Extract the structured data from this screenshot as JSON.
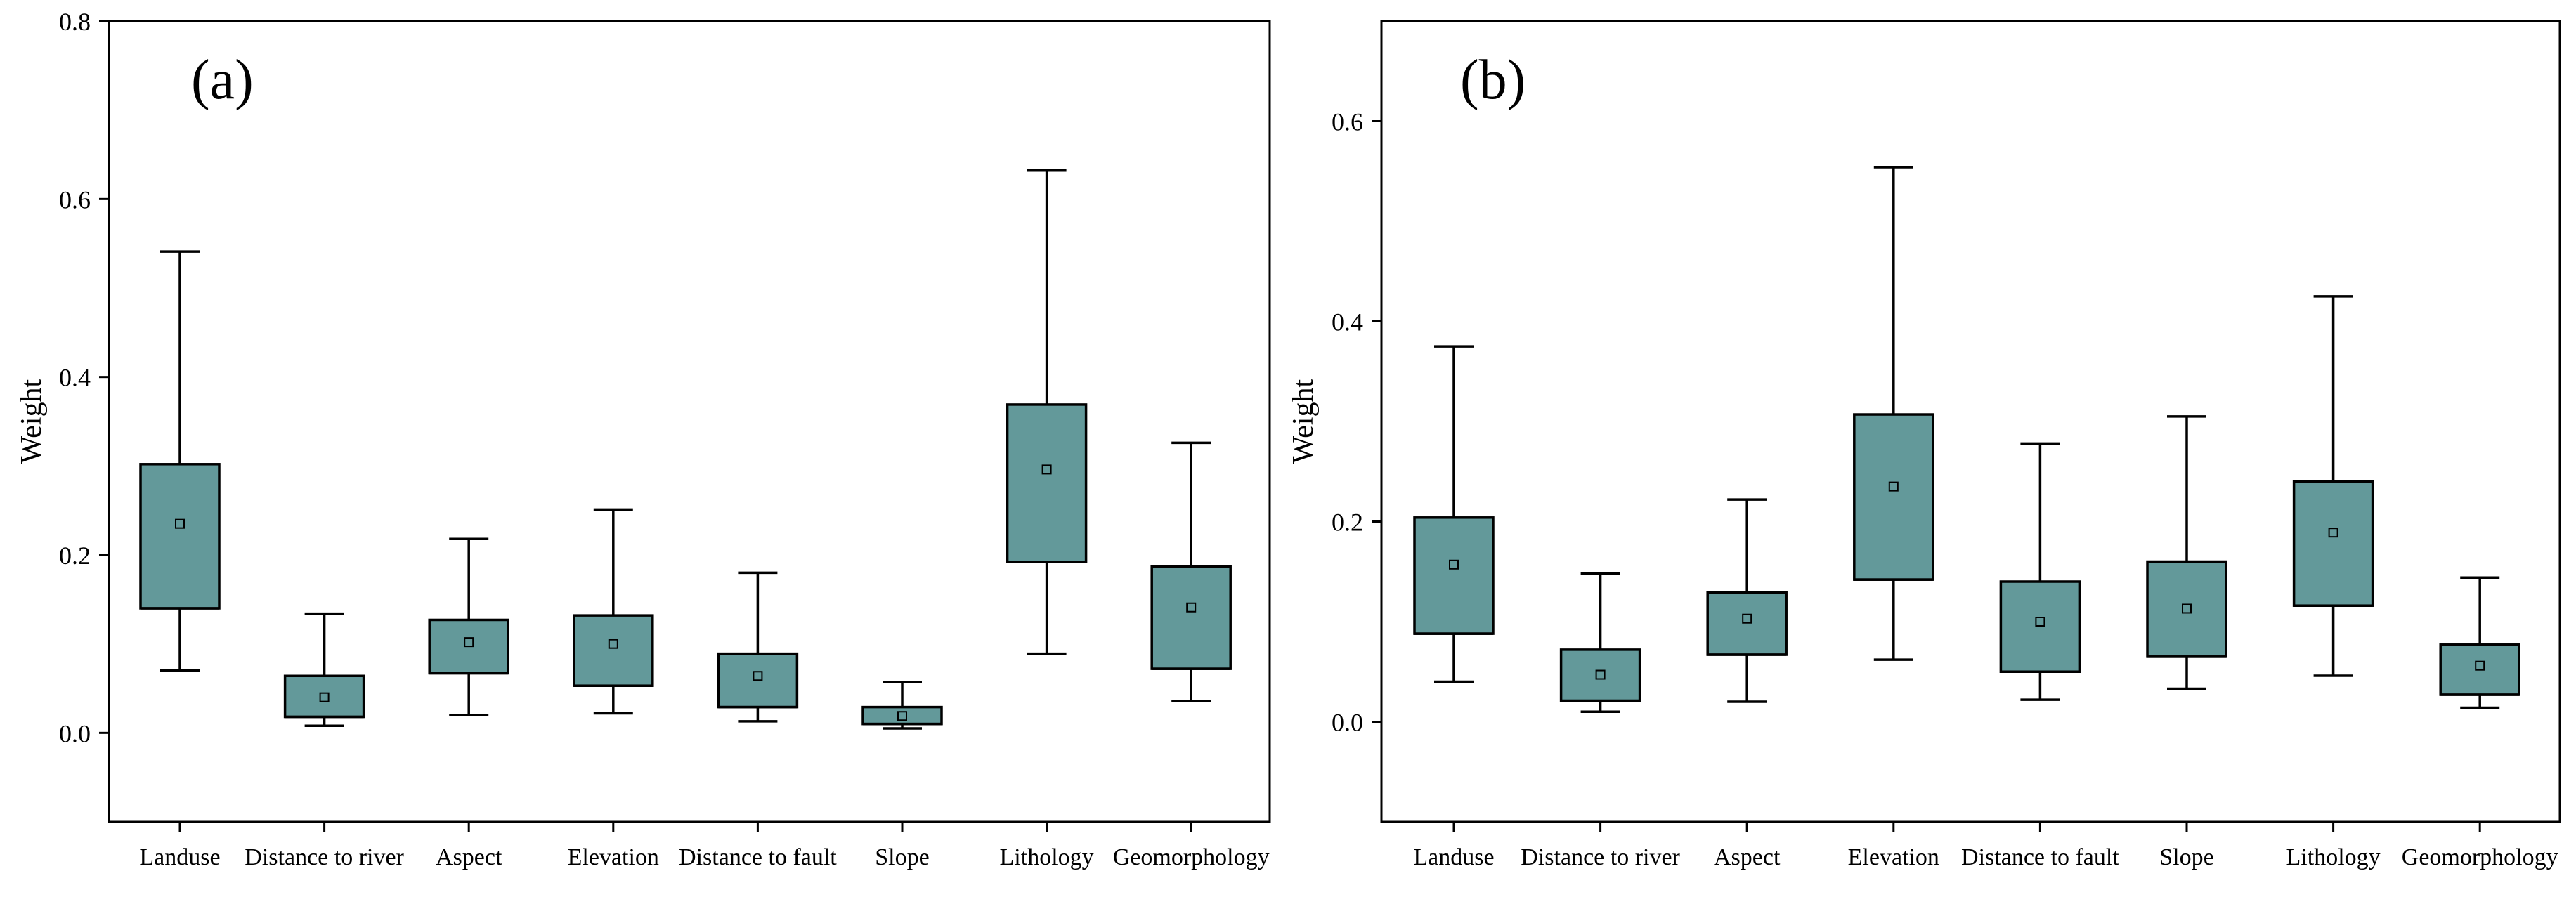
{
  "chart_data": [
    {
      "type": "box",
      "panel_label": "(a)",
      "ylabel": "Weight",
      "ylim": [
        -0.1,
        0.8
      ],
      "yticks": [
        "0.0",
        "0.2",
        "0.4",
        "0.6",
        "0.8"
      ],
      "categories": [
        "Landuse",
        "Distance to river",
        "Aspect",
        "Elevation",
        "Distance to fault",
        "Slope",
        "Lithology",
        "Geomorphology"
      ],
      "boxes": [
        {
          "whisker_low": 0.07,
          "q1": 0.14,
          "median": 0.14,
          "q3": 0.302,
          "whisker_high": 0.541,
          "mean": 0.235
        },
        {
          "whisker_low": 0.008,
          "q1": 0.018,
          "median": 0.018,
          "q3": 0.064,
          "whisker_high": 0.134,
          "mean": 0.04
        },
        {
          "whisker_low": 0.02,
          "q1": 0.067,
          "median": 0.067,
          "q3": 0.127,
          "whisker_high": 0.218,
          "mean": 0.102
        },
        {
          "whisker_low": 0.022,
          "q1": 0.053,
          "median": 0.053,
          "q3": 0.132,
          "whisker_high": 0.251,
          "mean": 0.1
        },
        {
          "whisker_low": 0.013,
          "q1": 0.029,
          "median": 0.029,
          "q3": 0.089,
          "whisker_high": 0.18,
          "mean": 0.064
        },
        {
          "whisker_low": 0.005,
          "q1": 0.01,
          "median": 0.01,
          "q3": 0.029,
          "whisker_high": 0.057,
          "mean": 0.019
        },
        {
          "whisker_low": 0.089,
          "q1": 0.192,
          "median": 0.192,
          "q3": 0.369,
          "whisker_high": 0.632,
          "mean": 0.296
        },
        {
          "whisker_low": 0.036,
          "q1": 0.072,
          "median": 0.072,
          "q3": 0.187,
          "whisker_high": 0.326,
          "mean": 0.141
        }
      ]
    },
    {
      "type": "box",
      "panel_label": "(b)",
      "ylabel": "Weight",
      "ylim": [
        -0.1,
        0.7
      ],
      "yticks": [
        "0.0",
        "0.2",
        "0.4",
        "0.6"
      ],
      "categories": [
        "Landuse",
        "Distance to river",
        "Aspect",
        "Elevation",
        "Distance to fault",
        "Slope",
        "Lithology",
        "Geomorphology"
      ],
      "boxes": [
        {
          "whisker_low": 0.04,
          "q1": 0.088,
          "median": 0.088,
          "q3": 0.204,
          "whisker_high": 0.375,
          "mean": 0.157
        },
        {
          "whisker_low": 0.01,
          "q1": 0.021,
          "median": 0.021,
          "q3": 0.072,
          "whisker_high": 0.148,
          "mean": 0.047
        },
        {
          "whisker_low": 0.02,
          "q1": 0.067,
          "median": 0.067,
          "q3": 0.129,
          "whisker_high": 0.222,
          "mean": 0.103
        },
        {
          "whisker_low": 0.062,
          "q1": 0.142,
          "median": 0.142,
          "q3": 0.307,
          "whisker_high": 0.554,
          "mean": 0.235
        },
        {
          "whisker_low": 0.022,
          "q1": 0.05,
          "median": 0.05,
          "q3": 0.14,
          "whisker_high": 0.278,
          "mean": 0.1
        },
        {
          "whisker_low": 0.033,
          "q1": 0.065,
          "median": 0.065,
          "q3": 0.16,
          "whisker_high": 0.305,
          "mean": 0.113
        },
        {
          "whisker_low": 0.046,
          "q1": 0.116,
          "median": 0.116,
          "q3": 0.24,
          "whisker_high": 0.425,
          "mean": 0.189
        },
        {
          "whisker_low": 0.014,
          "q1": 0.027,
          "median": 0.027,
          "q3": 0.077,
          "whisker_high": 0.144,
          "mean": 0.056
        }
      ]
    }
  ]
}
